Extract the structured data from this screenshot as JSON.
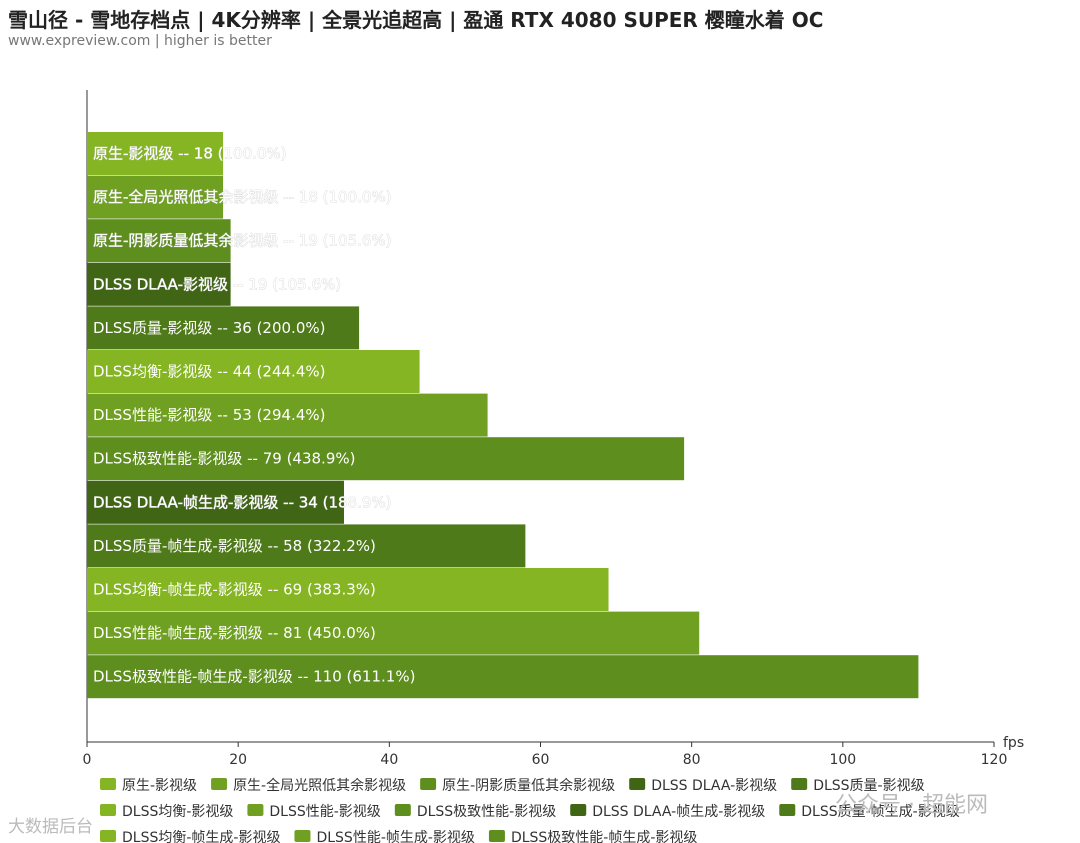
{
  "header": {
    "title": "雪山径 - 雪地存档点 | 4K分辨率 | 全景光追超高 | 盈通 RTX 4080 SUPER 樱瞳水着 OC",
    "subtitle": "www.expreview.com | higher is better"
  },
  "watermarks": {
    "left": "大数据后台",
    "right": "公众号 · 超能网"
  },
  "chart_data": {
    "type": "bar",
    "orientation": "horizontal",
    "xlabel": "fps",
    "xlim": [
      0,
      120
    ],
    "xticks": [
      "0",
      "20",
      "40",
      "60",
      "80",
      "100",
      "120"
    ],
    "grid": false,
    "legend_position": "bottom",
    "categories": [
      "原生-影视级",
      "原生-全局光照低其余影视级",
      "原生-阴影质量低其余影视级",
      "DLSS DLAA-影视级",
      "DLSS质量-影视级",
      "DLSS均衡-影视级",
      "DLSS性能-影视级",
      "DLSS极致性能-影视级",
      "DLSS DLAA-帧生成-影视级",
      "DLSS质量-帧生成-影视级",
      "DLSS均衡-帧生成-影视级",
      "DLSS性能-帧生成-影视级",
      "DLSS极致性能-帧生成-影视级"
    ],
    "values": [
      18,
      18,
      19,
      19,
      36,
      44,
      53,
      79,
      34,
      58,
      69,
      81,
      110
    ],
    "percents": [
      "100.0%",
      "100.0%",
      "105.6%",
      "105.6%",
      "200.0%",
      "244.4%",
      "294.4%",
      "438.9%",
      "188.9%",
      "322.2%",
      "383.3%",
      "450.0%",
      "611.1%"
    ],
    "colors": [
      "#86b523",
      "#6fa021",
      "#5e8f1e",
      "#3f6515",
      "#4f7a19",
      "#86b523",
      "#6fa021",
      "#5e8f1e",
      "#3f6515",
      "#4f7a19",
      "#86b523",
      "#6fa021",
      "#5e8f1e"
    ]
  }
}
